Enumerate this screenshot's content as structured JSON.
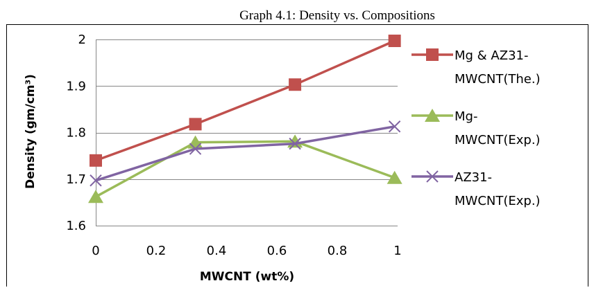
{
  "chart_data": {
    "type": "line",
    "title": "Graph 4.1: Density vs. Compositions",
    "xlabel": "MWCNT (wt%)",
    "ylabel": "Density (gm/cm³)",
    "xlim": [
      0,
      1
    ],
    "ylim": [
      1.6,
      2
    ],
    "xticks": [
      "0",
      "0.2",
      "0.4",
      "0.6",
      "0.8",
      "1"
    ],
    "yticks": [
      "1.6",
      "1.7",
      "1.8",
      "1.9",
      "2"
    ],
    "grid": "horizontal",
    "legend_position": "right",
    "series": [
      {
        "name": "Mg & AZ31-MWCNT(The.)",
        "legend_lines": [
          "Mg & AZ31-",
          "MWCNT(The.)"
        ],
        "color": "#C0504D",
        "marker": "square",
        "x": [
          0,
          0.33,
          0.66,
          0.99
        ],
        "y": [
          1.74,
          1.818,
          1.903,
          1.997
        ]
      },
      {
        "name": "Mg-MWCNT(Exp.)",
        "legend_lines": [
          "Mg-",
          "MWCNT(Exp.)"
        ],
        "color": "#9BBB59",
        "marker": "triangle",
        "x": [
          0,
          0.33,
          0.66,
          0.99
        ],
        "y": [
          1.662,
          1.779,
          1.781,
          1.703
        ]
      },
      {
        "name": "AZ31-MWCNT(Exp.)",
        "legend_lines": [
          "AZ31-",
          "MWCNT(Exp.)"
        ],
        "color": "#8064A2",
        "marker": "x",
        "x": [
          0,
          0.33,
          0.66,
          0.99
        ],
        "y": [
          1.697,
          1.765,
          1.776,
          1.813
        ]
      }
    ]
  }
}
